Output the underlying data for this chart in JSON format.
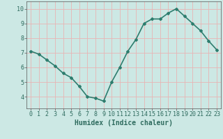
{
  "x": [
    0,
    1,
    2,
    3,
    4,
    5,
    6,
    7,
    8,
    9,
    10,
    11,
    12,
    13,
    14,
    15,
    16,
    17,
    18,
    19,
    20,
    21,
    22,
    23
  ],
  "y": [
    7.1,
    6.9,
    6.5,
    6.1,
    5.6,
    5.3,
    4.7,
    4.0,
    3.9,
    3.7,
    5.0,
    6.0,
    7.1,
    7.9,
    9.0,
    9.3,
    9.3,
    9.7,
    10.0,
    9.5,
    9.0,
    8.5,
    7.8,
    7.2
  ],
  "line_color": "#2e7d6e",
  "marker": "D",
  "marker_size": 2.0,
  "bg_color": "#cce8e4",
  "grid_color": "#e8b4b4",
  "xlabel": "Humidex (Indice chaleur)",
  "xlabel_fontsize": 7,
  "xlim": [
    -0.5,
    23.5
  ],
  "ylim": [
    3.2,
    10.5
  ],
  "yticks": [
    4,
    5,
    6,
    7,
    8,
    9,
    10
  ],
  "xticks": [
    0,
    1,
    2,
    3,
    4,
    5,
    6,
    7,
    8,
    9,
    10,
    11,
    12,
    13,
    14,
    15,
    16,
    17,
    18,
    19,
    20,
    21,
    22,
    23
  ],
  "tick_fontsize": 6,
  "line_width": 1.2
}
